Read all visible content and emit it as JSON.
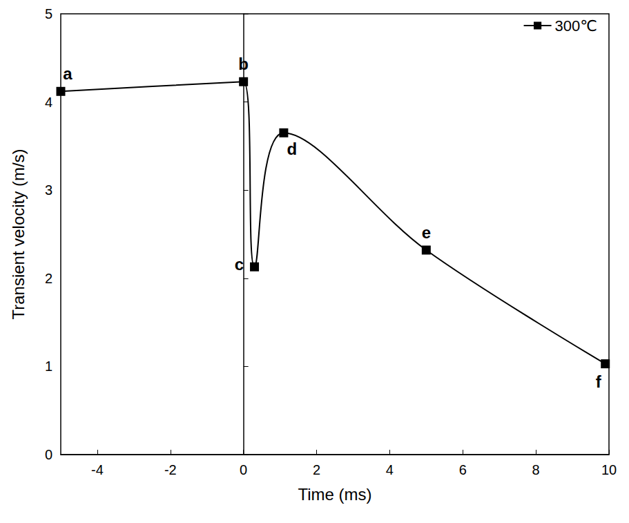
{
  "chart_data": {
    "type": "line",
    "x_label": "Time (ms)",
    "y_label": "Transient velocity (m/s)",
    "x": [
      -5,
      0,
      0.3,
      1.1,
      5,
      9.9
    ],
    "series": [
      {
        "name": "300℃",
        "color": "#000000",
        "marker": "square",
        "line_style": "solid",
        "values": [
          4.12,
          4.23,
          2.13,
          3.65,
          2.32,
          1.03
        ],
        "point_labels": [
          "a",
          "b",
          "c",
          "d",
          "e",
          "f"
        ]
      }
    ],
    "xlim": [
      -5,
      10
    ],
    "xticks": [
      -4,
      -2,
      0,
      2,
      4,
      6,
      8,
      10
    ],
    "ylim": [
      0,
      5
    ],
    "yticks": [
      0,
      1,
      2,
      3,
      4,
      5
    ],
    "legend": "upper right",
    "grid": false
  }
}
